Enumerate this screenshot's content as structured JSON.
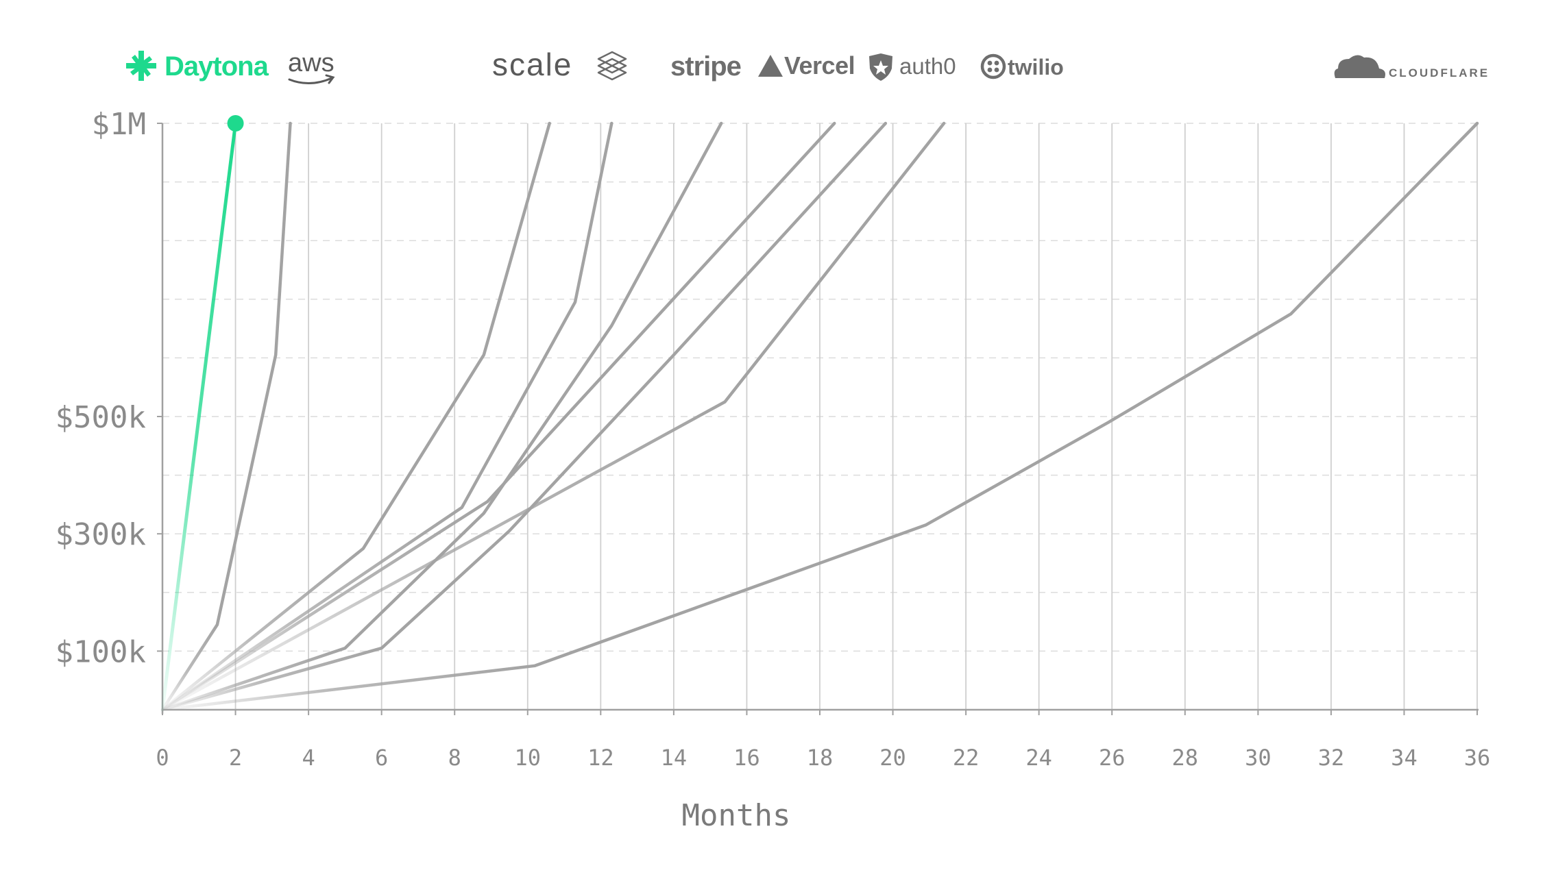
{
  "chart_data": {
    "type": "line",
    "xlabel": "Months",
    "ylabel": "",
    "xlim": [
      0,
      36
    ],
    "ylim": [
      0,
      1000000
    ],
    "x_ticks": [
      0,
      2,
      4,
      6,
      8,
      10,
      12,
      14,
      16,
      18,
      20,
      22,
      24,
      26,
      28,
      30,
      32,
      34,
      36
    ],
    "x_tick_labels": [
      "0",
      "2",
      "4",
      "6",
      "8",
      "10",
      "12",
      "14",
      "16",
      "18",
      "20",
      "22",
      "24",
      "26",
      "28",
      "30",
      "32",
      "34",
      "36"
    ],
    "y_ticks": [
      100000,
      300000,
      500000,
      1000000
    ],
    "y_tick_labels": [
      "$100k",
      "$300k",
      "$500k",
      "$1M"
    ],
    "y_gridlines": [
      100000,
      200000,
      300000,
      400000,
      500000,
      600000,
      700000,
      800000,
      900000,
      1000000
    ],
    "grid": true,
    "logos": [
      {
        "name": "Daytona",
        "text": "Daytona",
        "color": "#1ed98d"
      },
      {
        "name": "aws",
        "text": "aws",
        "color": "#5a5a5a"
      },
      {
        "name": "scale",
        "text": "scale",
        "color": "#5a5a5a"
      },
      {
        "name": "stripe",
        "text": "stripe",
        "color": "#6e6e6e"
      },
      {
        "name": "Vercel",
        "text": "Vercel",
        "color": "#6e6e6e"
      },
      {
        "name": "auth0",
        "text": "auth0",
        "color": "#6e6e6e"
      },
      {
        "name": "twilio",
        "text": "twilio",
        "color": "#6e6e6e"
      },
      {
        "name": "cloudflare",
        "text": "CLOUDFLARE",
        "color": "#6e6e6e"
      }
    ],
    "series": [
      {
        "highlight": true,
        "color": "#1ed98d",
        "points": [
          [
            0,
            0
          ],
          [
            2,
            1000000
          ]
        ]
      },
      {
        "color": "#a3a3a3",
        "points": [
          [
            0,
            0
          ],
          [
            1.5,
            145000
          ],
          [
            3.1,
            605000
          ],
          [
            3.5,
            1000000
          ]
        ]
      },
      {
        "color": "#a3a3a3",
        "points": [
          [
            0,
            0
          ],
          [
            5.5,
            275000
          ],
          [
            8.8,
            605000
          ],
          [
            10.6,
            1000000
          ]
        ]
      },
      {
        "color": "#a3a3a3",
        "points": [
          [
            0,
            0
          ],
          [
            8.2,
            345000
          ],
          [
            11.3,
            695000
          ],
          [
            12.3,
            1000000
          ]
        ]
      },
      {
        "color": "#a3a3a3",
        "points": [
          [
            0,
            0
          ],
          [
            5.0,
            105000
          ],
          [
            8.8,
            335000
          ],
          [
            12.3,
            655000
          ],
          [
            15.3,
            1000000
          ]
        ]
      },
      {
        "color": "#a3a3a3",
        "points": [
          [
            0,
            0
          ],
          [
            8.9,
            355000
          ],
          [
            18.4,
            1000000
          ]
        ]
      },
      {
        "color": "#a3a3a3",
        "points": [
          [
            0,
            0
          ],
          [
            6.0,
            105000
          ],
          [
            9.5,
            305000
          ],
          [
            14.0,
            605000
          ],
          [
            19.8,
            1000000
          ]
        ]
      },
      {
        "color": "#a3a3a3",
        "points": [
          [
            0,
            0
          ],
          [
            15.4,
            525000
          ],
          [
            21.4,
            1000000
          ]
        ]
      },
      {
        "color": "#a3a3a3",
        "points": [
          [
            0,
            0
          ],
          [
            10.2,
            75000
          ],
          [
            20.9,
            315000
          ],
          [
            25.9,
            490000
          ],
          [
            30.9,
            675000
          ],
          [
            36,
            1000000
          ]
        ]
      }
    ]
  }
}
